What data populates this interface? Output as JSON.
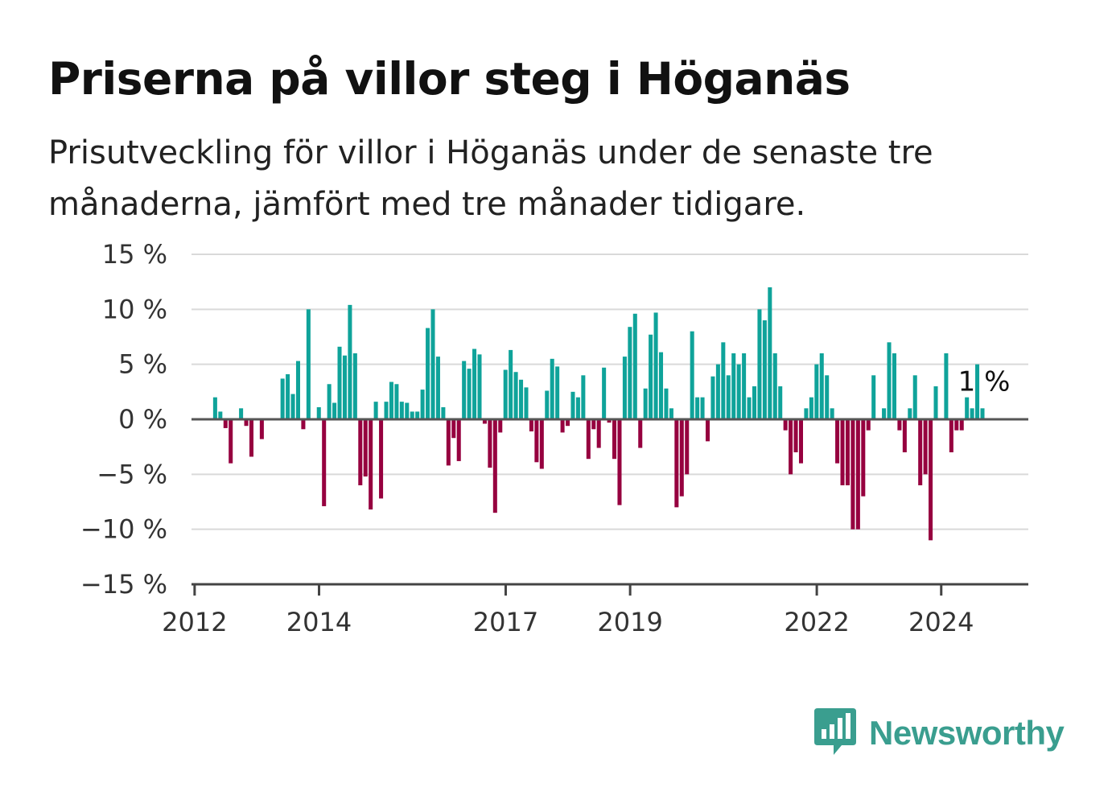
{
  "title": "Priserna på villor steg i Höganäs",
  "subtitle": "Prisutveckling för villor i Höganäs under de senaste tre månaderna, jämfört med tre månader tidigare.",
  "brand": {
    "name": "Newsworthy",
    "icon": "bar-chart-speech-bubble-icon",
    "color": "#3a9e8f"
  },
  "colors": {
    "positive": "#0fa39a",
    "negative": "#96003f",
    "grid": "#d9d9d9",
    "axis": "#444444"
  },
  "chart_data": {
    "type": "bar",
    "title": "Priserna på villor steg i Höganäs",
    "xlabel": "",
    "ylabel": "",
    "ylim": [
      -15,
      15
    ],
    "yticks": [
      15,
      10,
      5,
      0,
      -5,
      -10,
      -15
    ],
    "ytick_labels": [
      "15 %",
      "10 %",
      "5 %",
      "0 %",
      "−5 %",
      "−10 %",
      "−15 %"
    ],
    "xticks": [
      2012,
      2014,
      2017,
      2019,
      2022,
      2024
    ],
    "xtick_labels": [
      "2012",
      "2014",
      "2017",
      "2019",
      "2022",
      "2024"
    ],
    "xlim": [
      2011.95,
      2025.4
    ],
    "grid": true,
    "last_value_label": "1 %",
    "x_start": 2012.33,
    "x_step": 0.08333,
    "values": [
      2.0,
      0.7,
      -0.8,
      -4.0,
      0,
      1.0,
      -0.6,
      -3.4,
      0,
      -1.8,
      0,
      0,
      0,
      3.7,
      4.1,
      2.3,
      5.3,
      -0.9,
      10.0,
      0,
      1.1,
      -7.9,
      3.2,
      1.5,
      6.6,
      5.8,
      10.4,
      6.0,
      -6.0,
      -5.2,
      -8.2,
      1.6,
      -7.2,
      1.6,
      3.4,
      3.2,
      1.6,
      1.5,
      0.7,
      0.7,
      2.7,
      8.3,
      10.0,
      5.7,
      1.1,
      -4.2,
      -1.7,
      -3.8,
      5.3,
      4.6,
      6.4,
      5.9,
      -0.4,
      -4.4,
      -8.5,
      -1.2,
      4.5,
      6.3,
      4.3,
      3.6,
      2.9,
      -1.1,
      -3.9,
      -4.5,
      2.6,
      5.5,
      4.8,
      -1.2,
      -0.6,
      2.5,
      2.0,
      4.0,
      -3.6,
      -0.9,
      -2.6,
      4.7,
      -0.3,
      -3.6,
      -7.8,
      5.7,
      8.4,
      9.6,
      -2.6,
      2.8,
      7.7,
      9.7,
      6.1,
      2.8,
      1.0,
      -8.0,
      -7.0,
      -5.0,
      8.0,
      2.0,
      2.0,
      -2.0,
      3.9,
      5.0,
      7.0,
      4.0,
      6.0,
      5.0,
      6.0,
      2.0,
      3.0,
      10.0,
      9.0,
      12.0,
      6.0,
      3.0,
      -1.0,
      -5.0,
      -3.0,
      -4.0,
      1.0,
      2.0,
      5.0,
      6.0,
      4.0,
      1.0,
      -4.0,
      -6.0,
      -6.0,
      -10.0,
      -10.0,
      -7.0,
      -1.0,
      4.0,
      0,
      1.0,
      7.0,
      6.0,
      -1.0,
      -3.0,
      1.0,
      4.0,
      -6.0,
      -5.0,
      -11.0,
      3.0,
      0,
      6.0,
      -3.0,
      -1.0,
      -1.0,
      2.0,
      1.0,
      5.0,
      1.0
    ]
  }
}
